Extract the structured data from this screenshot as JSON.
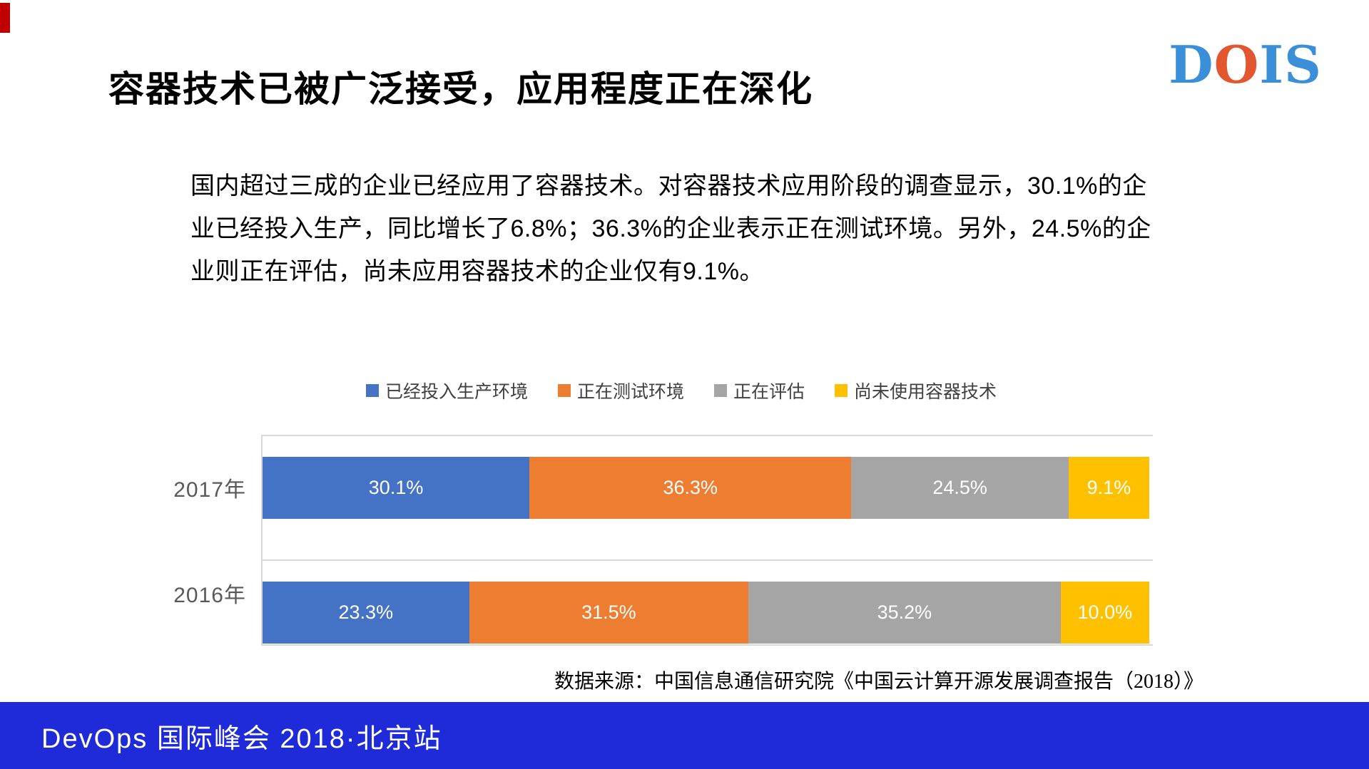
{
  "header": {
    "title": "容器技术已被广泛接受，应用程度正在深化",
    "logo": {
      "text": "DOIS",
      "letters": [
        {
          "char": "D",
          "color": "#3A8FD8"
        },
        {
          "char": "O",
          "color": "#E2572F"
        },
        {
          "char": "I",
          "color": "#3A8FD8"
        },
        {
          "char": "S",
          "color": "#3A8FD8"
        }
      ]
    }
  },
  "accent": {
    "corner_color": "#C00000"
  },
  "paragraph": {
    "lines": [
      "国内超过三成的企业已经应用了容器技术。对容器技术应用阶段的调查显示，30.1%的企",
      "业已经投入生产，同比增长了6.8%；36.3%的企业表示正在测试环境。另外，24.5%的企",
      "业则正在评估，尚未应用容器技术的企业仅有9.1%。"
    ]
  },
  "chart_data": {
    "type": "bar",
    "stacked": true,
    "orientation": "horizontal",
    "unit": "%",
    "xlim": [
      0,
      100
    ],
    "legend_position": "top",
    "gridlines": "row-borders",
    "grid_color": "#D9D9D9",
    "categories": [
      "2017年",
      "2016年"
    ],
    "series": [
      {
        "name": "已经投入生产环境",
        "color": "#4472C4",
        "values": [
          30.1,
          23.3
        ]
      },
      {
        "name": "正在测试环境",
        "color": "#ED7D31",
        "values": [
          36.3,
          31.5
        ]
      },
      {
        "name": "正在评估",
        "color": "#A5A5A5",
        "values": [
          24.5,
          35.2
        ]
      },
      {
        "name": "尚未使用容器技术",
        "color": "#FFC000",
        "values": [
          9.1,
          10.0
        ]
      }
    ],
    "value_label_color": "#FFFFFF",
    "source": "数据来源：中国信息通信研究院《中国云计算开源发展调查报告（2018）》"
  },
  "footer": {
    "text": "DevOps 国际峰会 2018·北京站",
    "background": "#1F2BD9"
  }
}
